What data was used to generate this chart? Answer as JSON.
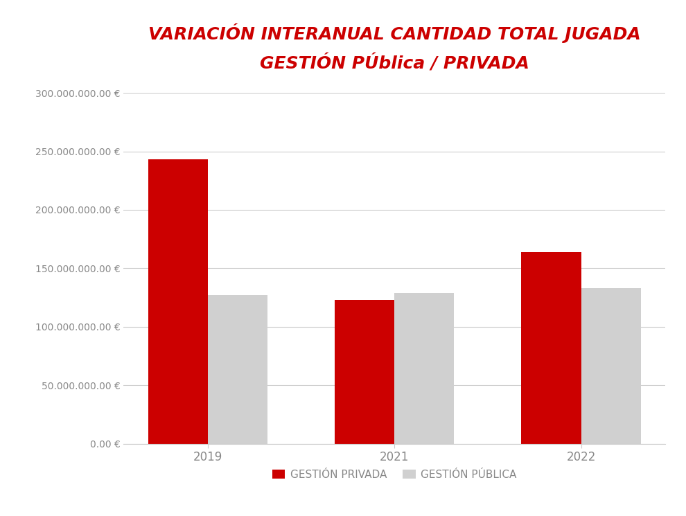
{
  "title_line1": "VARIACIÓN INTERANUAL CANTIDAD TOTAL JUGADA",
  "title_line2": "GESTIÓN PÚblica / PRIVADA",
  "title_color": "#cc0000",
  "categories": [
    "2019",
    "2021",
    "2022"
  ],
  "privada_values": [
    243000000,
    123000000,
    164000000
  ],
  "publica_values": [
    127000000,
    129000000,
    133000000
  ],
  "privada_color": "#cc0000",
  "publica_color": "#d0d0d0",
  "ylim": [
    0,
    300000000
  ],
  "yticks": [
    0,
    50000000,
    100000000,
    150000000,
    200000000,
    250000000,
    300000000
  ],
  "legend_privada": "GESTIÓN PRIVADA",
  "legend_publica": "GESTIÓN PÚBLICA",
  "background_color": "#ffffff",
  "bar_width": 0.32,
  "tick_color": "#888888",
  "grid_color": "#cccccc",
  "title_fontsize": 18,
  "ytick_fontsize": 10,
  "xtick_fontsize": 12,
  "legend_fontsize": 11
}
